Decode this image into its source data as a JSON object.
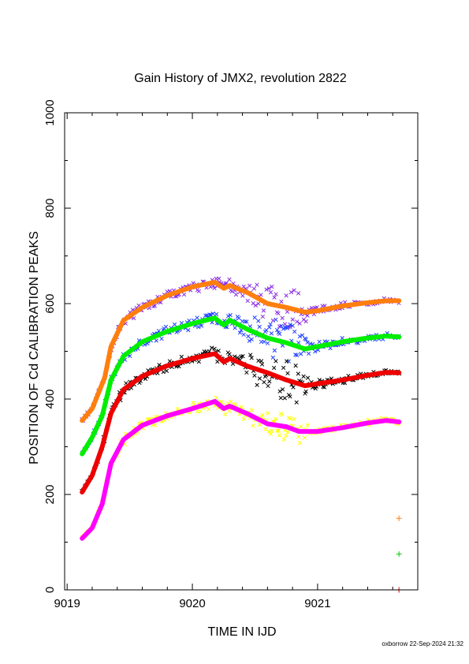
{
  "chart_data": {
    "type": "scatter",
    "title": "Gain History of JMX2, revolution 2822",
    "xlabel": "TIME IN IJD",
    "ylabel": "POSITION OF Cd CALIBRATION PEAKS",
    "xlim": [
      9018.98,
      9021.8
    ],
    "ylim": [
      0,
      1000
    ],
    "x_ticks": [
      9019,
      9020,
      9021
    ],
    "x_tick_labels": [
      "9019",
      "9020",
      "9021"
    ],
    "y_ticks": [
      0,
      200,
      400,
      600,
      800,
      1000
    ],
    "y_tick_labels": [
      "0",
      "200",
      "400",
      "600",
      "800",
      "1000"
    ],
    "grid": false,
    "footer": "oxborrow 22-Sep-2024 21:32",
    "series": [
      {
        "color": "#ff7f0e",
        "scatter_color": "#8b2be2",
        "marker_color": "#ff7f0e",
        "marker_y": 150,
        "fit": [
          [
            9019.12,
            355
          ],
          [
            9019.2,
            380
          ],
          [
            9019.3,
            445
          ],
          [
            9019.35,
            510
          ],
          [
            9019.45,
            565
          ],
          [
            9019.6,
            592
          ],
          [
            9019.8,
            617
          ],
          [
            9020.0,
            635
          ],
          [
            9020.18,
            645
          ],
          [
            9020.25,
            632
          ],
          [
            9020.3,
            638
          ],
          [
            9020.45,
            622
          ],
          [
            9020.6,
            600
          ],
          [
            9020.75,
            592
          ],
          [
            9020.9,
            582
          ],
          [
            9021.0,
            585
          ],
          [
            9021.2,
            595
          ],
          [
            9021.4,
            602
          ],
          [
            9021.55,
            606
          ],
          [
            9021.65,
            606
          ]
        ],
        "spread": [
          [
            9019.12,
            0
          ],
          [
            9019.3,
            8
          ],
          [
            9019.5,
            10
          ],
          [
            9020.0,
            10
          ],
          [
            9020.4,
            14
          ],
          [
            9020.5,
            30
          ],
          [
            9020.7,
            45
          ],
          [
            9020.85,
            40
          ],
          [
            9020.95,
            10
          ],
          [
            9021.2,
            6
          ],
          [
            9021.65,
            3
          ]
        ]
      },
      {
        "color": "#00ee00",
        "scatter_color": "#1f3fff",
        "marker_color": "#00cc00",
        "marker_y": 75,
        "fit": [
          [
            9019.12,
            285
          ],
          [
            9019.2,
            320
          ],
          [
            9019.28,
            365
          ],
          [
            9019.35,
            440
          ],
          [
            9019.45,
            490
          ],
          [
            9019.6,
            520
          ],
          [
            9019.8,
            542
          ],
          [
            9020.0,
            558
          ],
          [
            9020.18,
            570
          ],
          [
            9020.25,
            555
          ],
          [
            9020.3,
            565
          ],
          [
            9020.45,
            545
          ],
          [
            9020.6,
            528
          ],
          [
            9020.75,
            518
          ],
          [
            9020.9,
            505
          ],
          [
            9021.0,
            510
          ],
          [
            9021.2,
            520
          ],
          [
            9021.4,
            528
          ],
          [
            9021.55,
            532
          ],
          [
            9021.65,
            530
          ]
        ],
        "spread": [
          [
            9019.12,
            0
          ],
          [
            9019.3,
            8
          ],
          [
            9019.5,
            10
          ],
          [
            9020.0,
            10
          ],
          [
            9020.4,
            14
          ],
          [
            9020.5,
            30
          ],
          [
            9020.7,
            45
          ],
          [
            9020.85,
            40
          ],
          [
            9020.95,
            10
          ],
          [
            9021.2,
            6
          ],
          [
            9021.65,
            3
          ]
        ]
      },
      {
        "color": "#ee0000",
        "scatter_color": "#000000",
        "marker_color": "#ee0000",
        "marker_y": 0,
        "fit": [
          [
            9019.12,
            205
          ],
          [
            9019.2,
            240
          ],
          [
            9019.28,
            300
          ],
          [
            9019.35,
            370
          ],
          [
            9019.45,
            420
          ],
          [
            9019.6,
            448
          ],
          [
            9019.8,
            470
          ],
          [
            9020.0,
            485
          ],
          [
            9020.18,
            495
          ],
          [
            9020.25,
            478
          ],
          [
            9020.3,
            485
          ],
          [
            9020.45,
            468
          ],
          [
            9020.6,
            455
          ],
          [
            9020.75,
            440
          ],
          [
            9020.9,
            428
          ],
          [
            9021.0,
            432
          ],
          [
            9021.2,
            440
          ],
          [
            9021.4,
            450
          ],
          [
            9021.55,
            456
          ],
          [
            9021.65,
            455
          ]
        ],
        "spread": [
          [
            9019.12,
            0
          ],
          [
            9019.3,
            8
          ],
          [
            9019.5,
            10
          ],
          [
            9020.0,
            10
          ],
          [
            9020.4,
            14
          ],
          [
            9020.5,
            30
          ],
          [
            9020.7,
            45
          ],
          [
            9020.85,
            40
          ],
          [
            9020.95,
            10
          ],
          [
            9021.2,
            6
          ],
          [
            9021.65,
            3
          ]
        ]
      },
      {
        "color": "#ff00ff",
        "scatter_color": "#ffff00",
        "marker_color": "#ff00ff",
        "marker_y": null,
        "fit": [
          [
            9019.12,
            108
          ],
          [
            9019.2,
            130
          ],
          [
            9019.28,
            180
          ],
          [
            9019.35,
            265
          ],
          [
            9019.45,
            315
          ],
          [
            9019.6,
            345
          ],
          [
            9019.8,
            365
          ],
          [
            9020.0,
            380
          ],
          [
            9020.18,
            395
          ],
          [
            9020.25,
            380
          ],
          [
            9020.3,
            385
          ],
          [
            9020.45,
            368
          ],
          [
            9020.6,
            348
          ],
          [
            9020.75,
            342
          ],
          [
            9020.85,
            332
          ],
          [
            9021.0,
            332
          ],
          [
            9021.2,
            340
          ],
          [
            9021.4,
            350
          ],
          [
            9021.55,
            355
          ],
          [
            9021.65,
            352
          ]
        ],
        "spread": [
          [
            9019.12,
            0
          ],
          [
            9019.3,
            8
          ],
          [
            9019.5,
            10
          ],
          [
            9020.0,
            10
          ],
          [
            9020.4,
            12
          ],
          [
            9020.5,
            25
          ],
          [
            9020.7,
            35
          ],
          [
            9020.85,
            30
          ],
          [
            9020.95,
            8
          ],
          [
            9021.2,
            6
          ],
          [
            9021.65,
            3
          ]
        ]
      }
    ]
  }
}
